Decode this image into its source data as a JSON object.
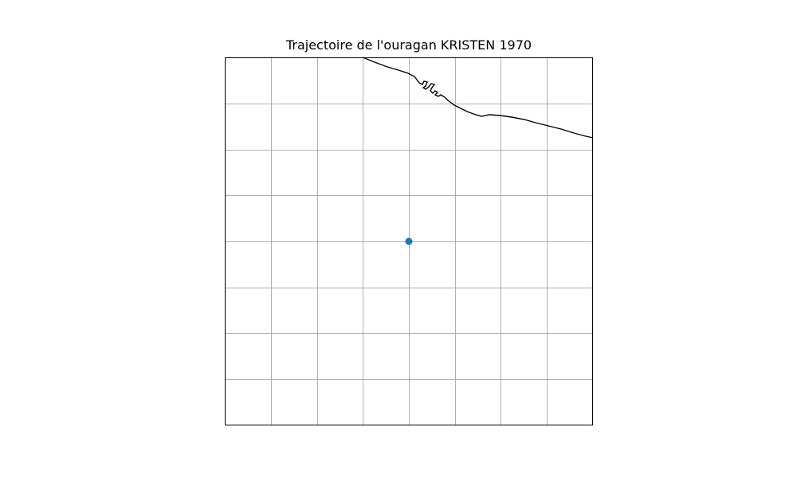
{
  "title": "Trajectoire de l'ouragan KRISTEN 1970",
  "colors": {
    "track_point": "#1f77b4",
    "coastline": "#000000",
    "gridline": "#b0b0b0",
    "frame": "#000000"
  },
  "map": {
    "grid": true,
    "ticks_shown": false,
    "gridlines_per_axis": 7
  },
  "track": {
    "points": [
      {
        "position_on_map": "center"
      }
    ]
  }
}
